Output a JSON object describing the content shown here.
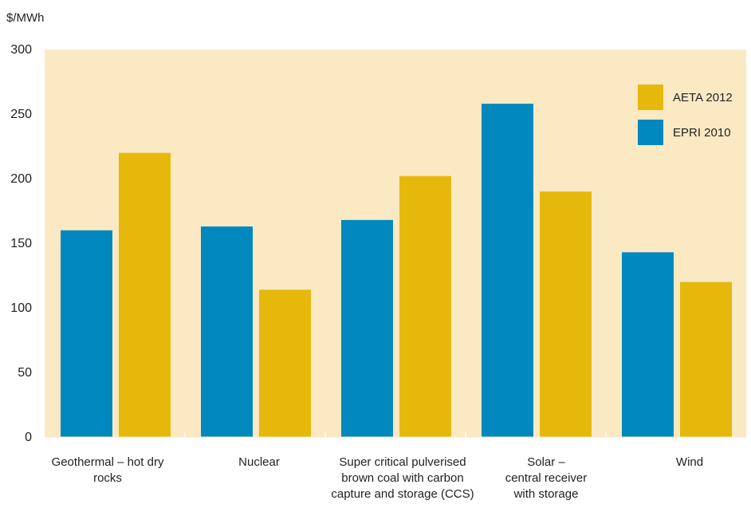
{
  "chart_data": {
    "type": "bar",
    "ylabel": "$/MWh",
    "ylim": [
      0,
      300
    ],
    "yticks": [
      "0",
      "50",
      "100",
      "150",
      "200",
      "250",
      "300"
    ],
    "categories": [
      "Geothermal – hot dry rocks",
      "Nuclear",
      "Super critical pulverised\nbrown coal with carbon\ncapture and storage (CCS)",
      "Solar –\ncentral receiver\nwith storage",
      "Wind"
    ],
    "series": [
      {
        "name": "EPRI 2010",
        "color": "#0088bf",
        "values": [
          160,
          163,
          168,
          258,
          143
        ]
      },
      {
        "name": "AETA 2012",
        "color": "#e6b80b",
        "values": [
          220,
          114,
          202,
          190,
          120
        ]
      }
    ],
    "legend_order": [
      "AETA 2012",
      "EPRI 2010"
    ],
    "legend_position": "top-right",
    "plot_background": "#fbe9c4",
    "grid": false
  }
}
